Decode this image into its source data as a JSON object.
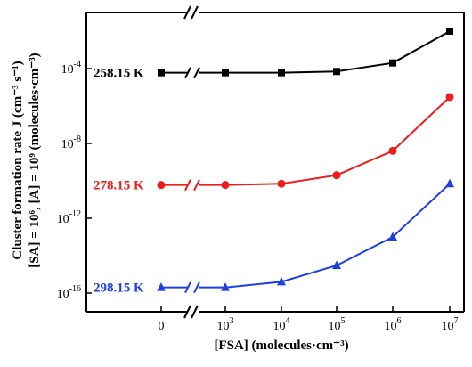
{
  "chart_data": {
    "type": "line",
    "xlabel": "[FSA] (molecules·cm⁻³)",
    "ylabel_line1": "Cluster formation rate J (cm⁻³ s⁻¹)",
    "ylabel_line2": "[SA] = 10⁶, [A] = 10⁹ (molecules·cm⁻³)",
    "x_ticks": [
      {
        "base": "0",
        "exp": ""
      },
      {
        "base": "10",
        "exp": "3"
      },
      {
        "base": "10",
        "exp": "4"
      },
      {
        "base": "10",
        "exp": "5"
      },
      {
        "base": "10",
        "exp": "6"
      },
      {
        "base": "10",
        "exp": "7"
      }
    ],
    "x": [
      0,
      1000,
      10000,
      100000,
      1000000,
      10000000
    ],
    "y_scale": "log",
    "ylim": [
      1e-17,
      0.1
    ],
    "y_ticks": [
      {
        "base": "10",
        "exp": "-4",
        "value": 0.0001
      },
      {
        "base": "10",
        "exp": "-8",
        "value": 1e-08
      },
      {
        "base": "10",
        "exp": "-12",
        "value": 1e-12
      },
      {
        "base": "10",
        "exp": "-16",
        "value": 1e-16
      }
    ],
    "axis_breaks": [
      "x",
      "y"
    ],
    "grid": false,
    "series": [
      {
        "name": "258.15 K",
        "color": "#000000",
        "marker": "square",
        "values": [
          6e-05,
          6e-05,
          6e-05,
          7e-05,
          0.0002,
          0.01
        ]
      },
      {
        "name": "278.15 K",
        "color": "#ee1c1c",
        "marker": "circle",
        "values": [
          6e-11,
          6e-11,
          7e-11,
          2e-10,
          4e-09,
          3e-06
        ]
      },
      {
        "name": "298.15 K",
        "color": "#1f3fe0",
        "marker": "triangle",
        "values": [
          2e-16,
          2e-16,
          4e-16,
          3e-15,
          1e-13,
          7e-11
        ]
      }
    ]
  }
}
